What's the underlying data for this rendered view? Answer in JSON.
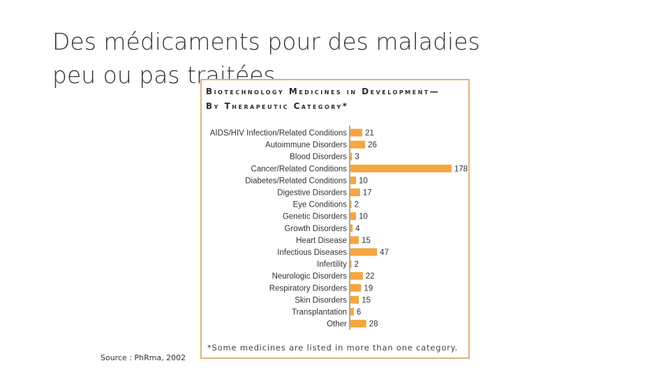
{
  "slide": {
    "title_line1": "Des médicaments pour des maladies",
    "title_line2": "peu ou pas traitées",
    "source": "Source : PhRma, 2002"
  },
  "chart_data": {
    "type": "bar",
    "orientation": "horizontal",
    "title_line1": "Biotechnology Medicines in Development—",
    "title_line2": "By Therapeutic Category*",
    "footnote": "*Some medicines are listed in more than one category.",
    "categories": [
      "AIDS/HIV Infection/Related Conditions",
      "Autoimmune Disorders",
      "Blood Disorders",
      "Cancer/Related Conditions",
      "Diabetes/Related Conditions",
      "Digestive Disorders",
      "Eye Conditions",
      "Genetic Disorders",
      "Growth Disorders",
      "Heart Disease",
      "Infectious Diseases",
      "Infertility",
      "Neurologic Disorders",
      "Respiratory Disorders",
      "Skin Disorders",
      "Transplantation",
      "Other"
    ],
    "values": [
      21,
      26,
      3,
      178,
      10,
      17,
      2,
      10,
      4,
      15,
      47,
      2,
      22,
      19,
      15,
      6,
      28
    ],
    "bar_color": "#f5a640",
    "border_color": "#e2b27e",
    "grid": false,
    "legend": "none"
  }
}
